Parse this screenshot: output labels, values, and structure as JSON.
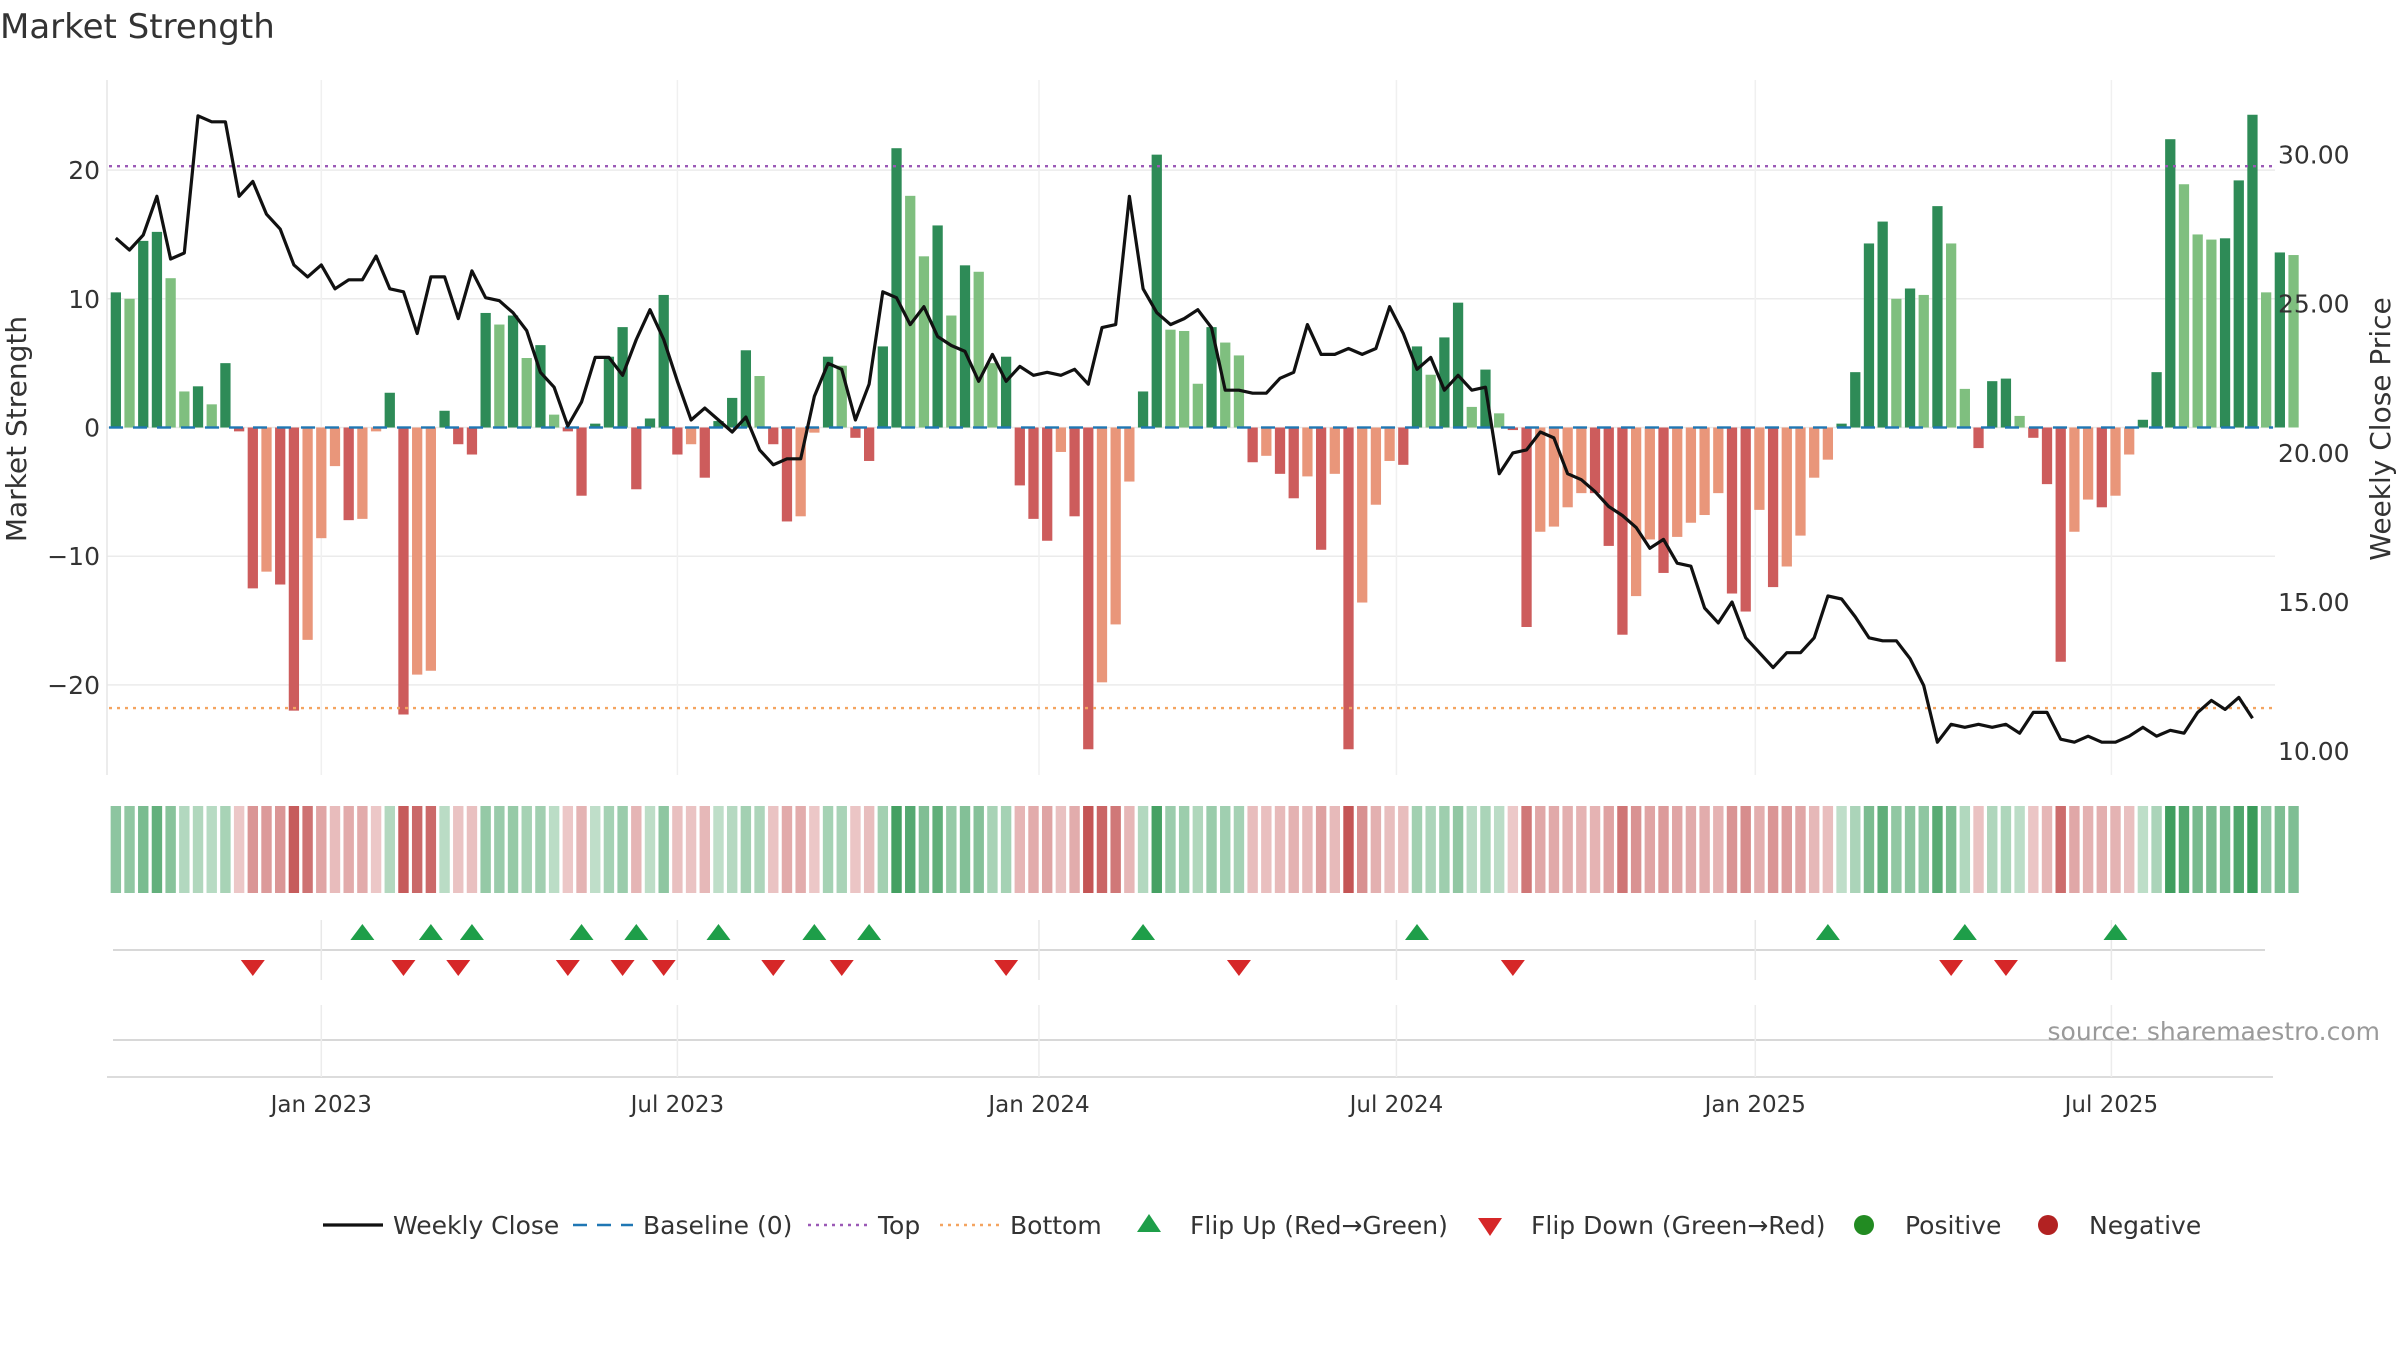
{
  "chart_data": {
    "type": "bar",
    "title": "Market Strength",
    "ylabel_left": "Market Strength",
    "ylabel_right": "Weekly Close Price",
    "ylim_left": [
      -27,
      27
    ],
    "ylim_right": [
      9.2,
      32.5
    ],
    "left_ticks": [
      "20",
      "10",
      "0",
      "−10",
      "−20"
    ],
    "left_tick_values": [
      20,
      10,
      0,
      -10,
      -20
    ],
    "right_ticks": [
      "30.00",
      "25.00",
      "20.00",
      "15.00",
      "10.00"
    ],
    "right_tick_values": [
      30,
      25,
      20,
      15,
      10
    ],
    "x_ticks": [
      "Jan 2023",
      "Jul 2023",
      "Jan 2024",
      "Jul 2024",
      "Jan 2025",
      "Jul 2025"
    ],
    "x_tick_weeks": [
      15.0,
      41.0,
      67.4,
      93.5,
      119.7,
      145.7
    ],
    "x_range_weeks": [
      0,
      157
    ],
    "top_line": 20.3,
    "bottom_line": -21.8,
    "grid": true,
    "legend_position": "bottom",
    "strength": [
      10.5,
      10,
      14.5,
      15.2,
      11.6,
      2.8,
      3.2,
      1.8,
      5,
      -0.3,
      -12.5,
      -11.2,
      -12.2,
      -22,
      -16.5,
      -8.6,
      -3,
      -7.2,
      -7.1,
      -0.3,
      2.7,
      -22.3,
      -19.2,
      -18.9,
      1.3,
      -1.3,
      -2.1,
      8.9,
      8,
      8.7,
      5.4,
      6.4,
      1,
      -0.3,
      -5.3,
      0.3,
      5.5,
      7.8,
      -4.8,
      0.7,
      10.3,
      -2.1,
      -1.3,
      -3.9,
      0.5,
      2.3,
      6,
      4,
      -1.3,
      -7.3,
      -6.9,
      -0.4,
      5.5,
      4.8,
      -0.8,
      -2.6,
      6.3,
      21.7,
      18,
      13.3,
      15.7,
      8.7,
      12.6,
      12.1,
      5,
      5.5,
      -4.5,
      -7.1,
      -8.8,
      -1.9,
      -6.9,
      -25,
      -19.8,
      -15.3,
      -4.2,
      2.8,
      21.2,
      7.6,
      7.5,
      3.4,
      7.8,
      6.6,
      5.6,
      -2.7,
      -2.2,
      -3.6,
      -5.5,
      -3.8,
      -9.5,
      -3.6,
      -25,
      -13.6,
      -6,
      -2.6,
      -2.9,
      6.3,
      4.1,
      7,
      9.7,
      1.6,
      4.5,
      1.1,
      -0.2,
      -15.5,
      -8.1,
      -7.7,
      -6.2,
      -5.1,
      -5.1,
      -9.2,
      -16.1,
      -13.1,
      -8.7,
      -11.3,
      -8.5,
      -7.4,
      -6.8,
      -5.1,
      -12.9,
      -14.3,
      -6.4,
      -12.4,
      -10.8,
      -8.4,
      -3.9,
      -2.5,
      0.3,
      4.3,
      14.3,
      16,
      10,
      10.8,
      10.3,
      17.2,
      14.3,
      3,
      -1.6,
      3.6,
      3.8,
      0.9,
      -0.8,
      -4.4,
      -18.2,
      -8.1,
      -5.6,
      -6.2,
      -5.3,
      -2.1,
      0.6,
      4.3,
      22.4,
      18.9,
      15,
      14.6,
      14.7,
      19.2,
      24.3,
      10.5,
      13.6,
      13.4
    ],
    "weekly_close": [
      27.2,
      26.8,
      27.3,
      28.6,
      26.5,
      26.7,
      31.3,
      31.1,
      31.1,
      28.6,
      29.1,
      28.0,
      27.5,
      26.3,
      25.9,
      26.3,
      25.5,
      25.8,
      25.8,
      26.6,
      25.5,
      25.4,
      24.0,
      25.9,
      25.9,
      24.5,
      26.1,
      25.2,
      25.1,
      24.7,
      24.1,
      22.7,
      22.2,
      20.9,
      21.7,
      23.2,
      23.2,
      22.6,
      23.8,
      24.8,
      23.8,
      22.4,
      21.1,
      21.5,
      21.1,
      20.7,
      21.2,
      20.1,
      19.6,
      19.8,
      19.8,
      21.9,
      23.0,
      22.8,
      21.1,
      22.3,
      25.4,
      25.2,
      24.3,
      24.9,
      23.9,
      23.6,
      23.4,
      22.4,
      23.3,
      22.4,
      22.9,
      22.6,
      22.7,
      22.6,
      22.8,
      22.3,
      24.2,
      24.3,
      28.6,
      25.5,
      24.7,
      24.3,
      24.5,
      24.8,
      24.2,
      22.1,
      22.1,
      22.0,
      22.0,
      22.5,
      22.7,
      24.3,
      23.3,
      23.3,
      23.5,
      23.3,
      23.5,
      24.9,
      24.0,
      22.8,
      23.2,
      22.1,
      22.6,
      22.1,
      22.2,
      19.3,
      20.0,
      20.1,
      20.7,
      20.5,
      19.3,
      19.1,
      18.7,
      18.2,
      17.9,
      17.5,
      16.8,
      17.1,
      16.3,
      16.2,
      14.8,
      14.3,
      15.0,
      13.8,
      13.3,
      12.8,
      13.3,
      13.3,
      13.8,
      15.2,
      15.1,
      14.5,
      13.8,
      13.7,
      13.7,
      13.1,
      12.2,
      10.3,
      10.9,
      10.8,
      10.9,
      10.8,
      10.9,
      10.6,
      11.3,
      11.3,
      10.4,
      10.3,
      10.5,
      10.3,
      10.3,
      10.5,
      10.8,
      10.5,
      10.7,
      10.6,
      11.3,
      11.7,
      11.4,
      11.8,
      11.1
    ],
    "flip_up_weeks": [
      18,
      23,
      26,
      34,
      38,
      44,
      51,
      55,
      75,
      95,
      125,
      135,
      146
    ],
    "flip_down_weeks": [
      10,
      21,
      25,
      33,
      37,
      40,
      48,
      53,
      65,
      82,
      102,
      134,
      138
    ],
    "source_text": "source: sharemaestro.com"
  },
  "legend": {
    "weekly_close": "Weekly Close",
    "baseline": "Baseline (0)",
    "top": "Top",
    "bottom": "Bottom",
    "flip_up": "Flip Up (Red→Green)",
    "flip_down": "Flip Down (Green→Red)",
    "positive": "Positive",
    "negative": "Negative"
  },
  "colors": {
    "pos_strong": "#2e8b57",
    "pos_weak": "#7fbf7f",
    "neg_strong": "#cd5c5c",
    "neg_weak": "#e9967a",
    "top_line": "#9b59b6",
    "bottom_line": "#f4a460",
    "baseline": "#1f77b4",
    "flip_up": "#1e9e49",
    "flip_down": "#d62728",
    "positive_dot": "#228b22",
    "negative_dot": "#b22222",
    "close_line": "#111111"
  }
}
